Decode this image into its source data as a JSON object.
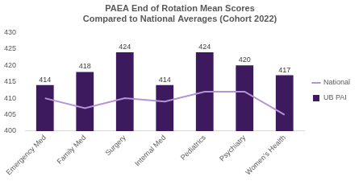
{
  "chart_data": {
    "type": "bar",
    "title": [
      "PAEA End of Rotation Mean Scores",
      "Compared to National Averages (Cohort 2022)"
    ],
    "categories": [
      "Emergency Med",
      "Family Med",
      "Surgery",
      "Internal Med",
      "Pediatrics",
      "Psychiatry",
      "Women's Health"
    ],
    "series": [
      {
        "name": "UB PAI",
        "type": "bar",
        "color": "#3d1a5e",
        "data_labels": true,
        "values": [
          414,
          418,
          424,
          414,
          424,
          420,
          417
        ]
      },
      {
        "name": "National",
        "type": "line",
        "color": "#b394d8",
        "marker": "none",
        "values": [
          410,
          407,
          410,
          409,
          412,
          412,
          405
        ]
      }
    ],
    "ylim": [
      400,
      430
    ],
    "yticks": [
      400,
      405,
      410,
      415,
      420,
      425,
      430
    ],
    "grid": false,
    "legend": "right"
  }
}
